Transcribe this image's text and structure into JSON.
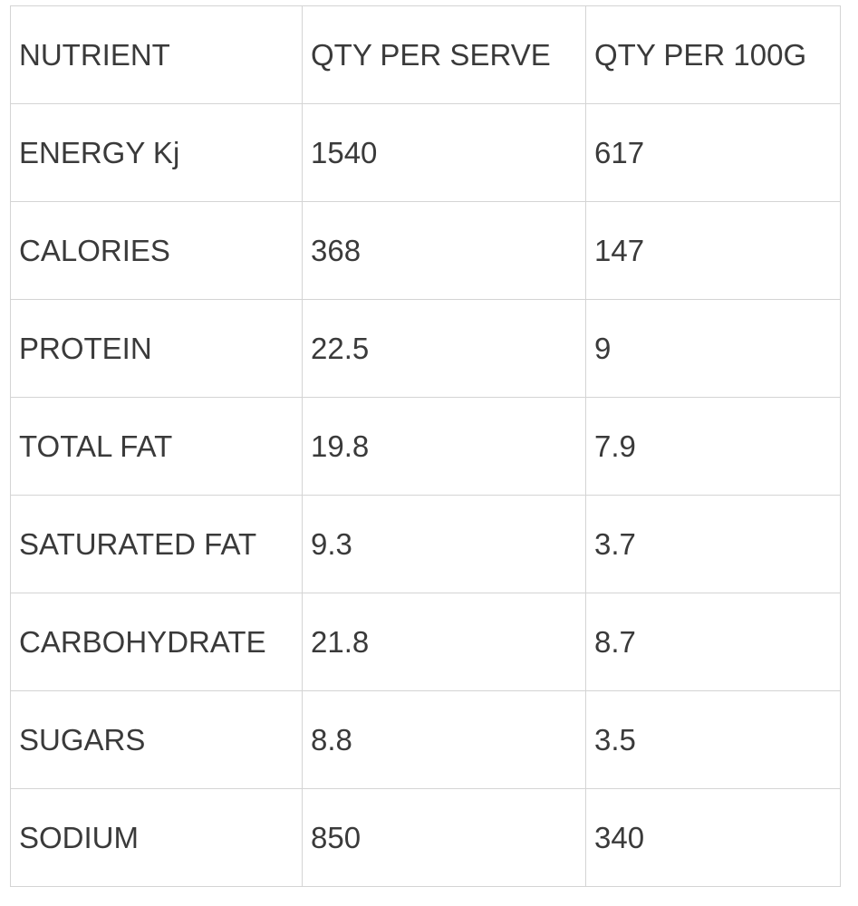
{
  "table": {
    "headers": [
      "NUTRIENT",
      "QTY PER SERVE",
      "QTY PER 100G"
    ],
    "rows": [
      [
        "ENERGY Kj",
        "1540",
        "617"
      ],
      [
        "CALORIES",
        "368",
        "147"
      ],
      [
        "PROTEIN",
        "22.5",
        "9"
      ],
      [
        "TOTAL FAT",
        "19.8",
        "7.9"
      ],
      [
        "SATURATED FAT",
        "9.3",
        "3.7"
      ],
      [
        "CARBOHYDRATE",
        "21.8",
        "8.7"
      ],
      [
        "SUGARS",
        "8.8",
        "3.5"
      ],
      [
        "SODIUM",
        "850",
        "340"
      ]
    ]
  },
  "colors": {
    "text": "#3a3a3a",
    "border": "#d4d4d4",
    "background": "#ffffff"
  }
}
